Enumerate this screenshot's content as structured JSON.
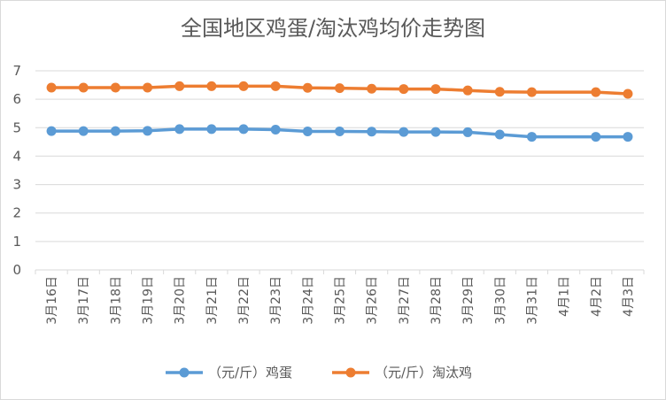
{
  "chart_data": {
    "type": "line",
    "title": "全国地区鸡蛋/淘汰鸡均价走势图",
    "xlabel": "",
    "ylabel": "",
    "ylim": [
      0,
      7
    ],
    "yticks": [
      0,
      1,
      2,
      3,
      4,
      5,
      6,
      7
    ],
    "grid": true,
    "legend_position": "bottom",
    "categories": [
      "3月16日",
      "3月17日",
      "3月18日",
      "3月19日",
      "3月20日",
      "3月21日",
      "3月22日",
      "3月23日",
      "3月24日",
      "3月25日",
      "3月26日",
      "3月27日",
      "3月28日",
      "3月29日",
      "3月30日",
      "3月31日",
      "4月1日",
      "4月2日",
      "4月3日"
    ],
    "series": [
      {
        "name": "（元/斤）鸡蛋",
        "color": "#5b9bd5",
        "values": [
          4.88,
          4.88,
          4.88,
          4.89,
          4.95,
          4.95,
          4.95,
          4.93,
          4.87,
          4.87,
          4.86,
          4.85,
          4.85,
          4.84,
          4.76,
          4.68,
          null,
          4.68,
          4.68
        ]
      },
      {
        "name": "（元/斤）淘汰鸡",
        "color": "#ed7d31",
        "values": [
          6.41,
          6.41,
          6.41,
          6.41,
          6.46,
          6.46,
          6.46,
          6.46,
          6.4,
          6.39,
          6.37,
          6.36,
          6.36,
          6.31,
          6.26,
          6.25,
          null,
          6.25,
          6.19
        ]
      }
    ]
  }
}
